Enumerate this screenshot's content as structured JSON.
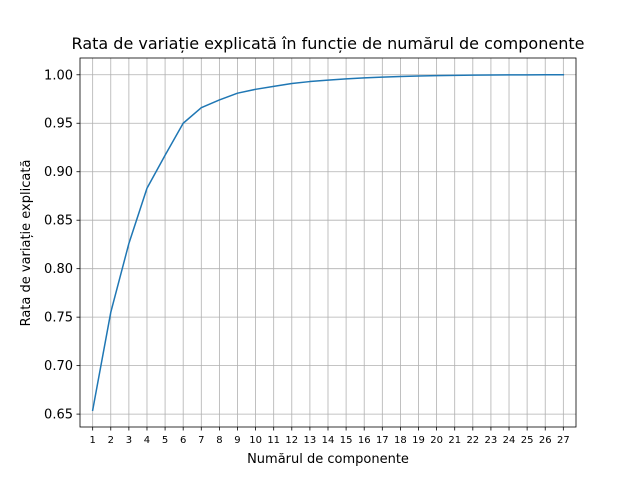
{
  "chart_data": {
    "type": "line",
    "title": "Rata de variație explicată în funcție de numărul de componente",
    "xlabel": "Numărul de componente",
    "ylabel": "Rata de variație explicată",
    "x": [
      1,
      2,
      3,
      4,
      5,
      6,
      7,
      8,
      9,
      10,
      11,
      12,
      13,
      14,
      15,
      16,
      17,
      18,
      19,
      20,
      21,
      22,
      23,
      24,
      25,
      26,
      27
    ],
    "xtick_labels": [
      "1",
      "2",
      "3",
      "4",
      "5",
      "6",
      "7",
      "8",
      "9",
      "10",
      "11",
      "12",
      "13",
      "14",
      "15",
      "16",
      "17",
      "18",
      "19",
      "20",
      "21",
      "22",
      "23",
      "24",
      "25",
      "26",
      "27"
    ],
    "ytick_values": [
      0.65,
      0.7,
      0.75,
      0.8,
      0.85,
      0.9,
      0.95,
      1.0
    ],
    "ytick_labels": [
      "0.65",
      "0.70",
      "0.75",
      "0.80",
      "0.85",
      "0.90",
      "0.95",
      "1.00"
    ],
    "series": [
      {
        "values": [
          0.654,
          0.755,
          0.826,
          0.883,
          0.917,
          0.95,
          0.966,
          0.974,
          0.981,
          0.985,
          0.988,
          0.991,
          0.993,
          0.9945,
          0.9958,
          0.9968,
          0.9976,
          0.9982,
          0.9987,
          0.9991,
          0.9994,
          0.9996,
          0.9998,
          0.9999,
          0.99995,
          0.99998,
          1.0
        ],
        "color": "#1f77b4"
      }
    ],
    "xlim": [
      0.3,
      27.7
    ],
    "ylim": [
      0.6367,
      1.0173
    ],
    "grid": true
  }
}
